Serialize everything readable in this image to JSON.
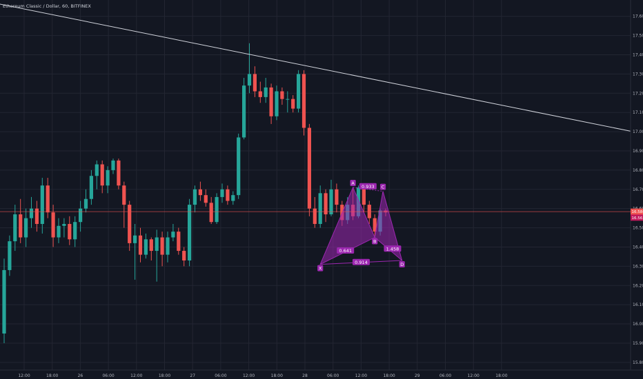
{
  "chart_data": {
    "type": "candlestick",
    "title": "Ethereum Classic / Dollar, 60, BITFINEX",
    "symbol": "Ethereum Classic / Dollar",
    "interval": "60",
    "exchange": "BITFINEX",
    "grid": true,
    "ylim": [
      15.76,
      17.685
    ],
    "y_ticks": [
      "17.600",
      "17.500",
      "17.400",
      "17.300",
      "17.200",
      "17.100",
      "17.000",
      "16.900",
      "16.800",
      "16.700",
      "16.600",
      "16.500",
      "16.400",
      "16.300",
      "16.200",
      "16.100",
      "16.000",
      "15.900",
      "15.800"
    ],
    "x_ticks": [
      "12:00",
      "18:00",
      "26",
      "06:00",
      "12:00",
      "18:00",
      "27",
      "06:00",
      "12:00",
      "18:00",
      "28",
      "06:00",
      "12:00",
      "18:00",
      "29",
      "06:00",
      "12:00",
      "18:00"
    ],
    "last_price": "16.584",
    "second_price": "16.56",
    "candles": [
      [
        15.95,
        16.28,
        16.34,
        15.9
      ],
      [
        16.28,
        16.43,
        16.46,
        16.25
      ],
      [
        16.43,
        16.57,
        16.62,
        16.38
      ],
      [
        16.57,
        16.45,
        16.65,
        16.42
      ],
      [
        16.45,
        16.55,
        16.6,
        16.4
      ],
      [
        16.55,
        16.6,
        16.66,
        16.5
      ],
      [
        16.6,
        16.52,
        16.64,
        16.48
      ],
      [
        16.52,
        16.72,
        16.76,
        16.47
      ],
      [
        16.72,
        16.58,
        16.76,
        16.55
      ],
      [
        16.58,
        16.45,
        16.62,
        16.4
      ],
      [
        16.45,
        16.51,
        16.55,
        16.42
      ],
      [
        16.51,
        16.52,
        16.55,
        16.45
      ],
      [
        16.52,
        16.44,
        16.56,
        16.41
      ],
      [
        16.44,
        16.53,
        16.56,
        16.4
      ],
      [
        16.53,
        16.6,
        16.64,
        16.48
      ],
      [
        16.6,
        16.65,
        16.7,
        16.58
      ],
      [
        16.65,
        16.77,
        16.8,
        16.62
      ],
      [
        16.77,
        16.83,
        16.85,
        16.7
      ],
      [
        16.83,
        16.72,
        16.85,
        16.68
      ],
      [
        16.72,
        16.8,
        16.82,
        16.68
      ],
      [
        16.8,
        16.85,
        16.86,
        16.78
      ],
      [
        16.85,
        16.72,
        16.86,
        16.7
      ],
      [
        16.72,
        16.62,
        16.74,
        16.5
      ],
      [
        16.62,
        16.42,
        16.64,
        16.38
      ],
      [
        16.42,
        16.46,
        16.52,
        16.23
      ],
      [
        16.46,
        16.36,
        16.5,
        16.32
      ],
      [
        16.36,
        16.44,
        16.47,
        16.34
      ],
      [
        16.44,
        16.38,
        16.45,
        16.33
      ],
      [
        16.38,
        16.45,
        16.49,
        16.22
      ],
      [
        16.45,
        16.36,
        16.48,
        16.3
      ],
      [
        16.36,
        16.45,
        16.48,
        16.32
      ],
      [
        16.45,
        16.48,
        16.52,
        16.43
      ],
      [
        16.48,
        16.38,
        16.5,
        16.36
      ],
      [
        16.38,
        16.33,
        16.4,
        16.3
      ],
      [
        16.33,
        16.62,
        16.65,
        16.3
      ],
      [
        16.62,
        16.7,
        16.72,
        16.58
      ],
      [
        16.7,
        16.67,
        16.74,
        16.64
      ],
      [
        16.67,
        16.63,
        16.7,
        16.61
      ],
      [
        16.63,
        16.53,
        16.66,
        16.52
      ],
      [
        16.53,
        16.66,
        16.68,
        16.52
      ],
      [
        16.66,
        16.7,
        16.73,
        16.63
      ],
      [
        16.7,
        16.64,
        16.72,
        16.62
      ],
      [
        16.64,
        16.67,
        16.69,
        16.62
      ],
      [
        16.67,
        16.97,
        16.99,
        16.65
      ],
      [
        16.97,
        17.24,
        17.28,
        16.96
      ],
      [
        17.24,
        17.3,
        17.46,
        17.2
      ],
      [
        17.3,
        17.21,
        17.34,
        17.18
      ],
      [
        17.21,
        17.18,
        17.26,
        17.15
      ],
      [
        17.18,
        17.23,
        17.28,
        17.15
      ],
      [
        17.23,
        17.08,
        17.25,
        17.04
      ],
      [
        17.08,
        17.21,
        17.24,
        17.06
      ],
      [
        17.21,
        17.17,
        17.23,
        17.14
      ],
      [
        17.17,
        17.17,
        17.21,
        17.1
      ],
      [
        17.17,
        17.12,
        17.19,
        17.1
      ],
      [
        17.12,
        17.3,
        17.32,
        17.1
      ],
      [
        17.3,
        17.02,
        17.32,
        16.98
      ],
      [
        17.02,
        16.6,
        17.04,
        16.56
      ],
      [
        16.6,
        16.52,
        16.66,
        16.5
      ],
      [
        16.52,
        16.68,
        16.72,
        16.5
      ],
      [
        16.68,
        16.57,
        16.7,
        16.53
      ],
      [
        16.57,
        16.7,
        16.75,
        16.56
      ],
      [
        16.7,
        16.62,
        16.73,
        16.58
      ],
      [
        16.62,
        16.54,
        16.64,
        16.51
      ],
      [
        16.54,
        16.62,
        16.66,
        16.52
      ],
      [
        16.62,
        16.56,
        16.7,
        16.54
      ],
      [
        16.56,
        16.71,
        16.72,
        16.55
      ],
      [
        16.71,
        16.62,
        16.73,
        16.58
      ],
      [
        16.62,
        16.55,
        16.64,
        16.52
      ],
      [
        16.55,
        16.48,
        16.57,
        16.42
      ],
      [
        16.48,
        16.59,
        16.6,
        16.46
      ],
      [
        16.59,
        16.58,
        16.6,
        16.56
      ]
    ],
    "pattern": {
      "name": "bat",
      "points": [
        {
          "label": "X",
          "price": 16.31,
          "bar": 58
        },
        {
          "label": "A",
          "price": 16.71,
          "bar": 64
        },
        {
          "label": "B",
          "price": 16.45,
          "bar": 68
        },
        {
          "label": "C",
          "price": 16.69,
          "bar": 69.5
        },
        {
          "label": "D",
          "price": 16.33,
          "bar": 73
        }
      ],
      "ratios": {
        "ab": "0.641",
        "xb": "0.914",
        "bc": "0.933",
        "cd": "1.458"
      }
    },
    "trendline": {
      "start": {
        "bar": -1,
        "price": 17.665
      },
      "end": {
        "bar": 121,
        "price": 16.968
      }
    }
  }
}
